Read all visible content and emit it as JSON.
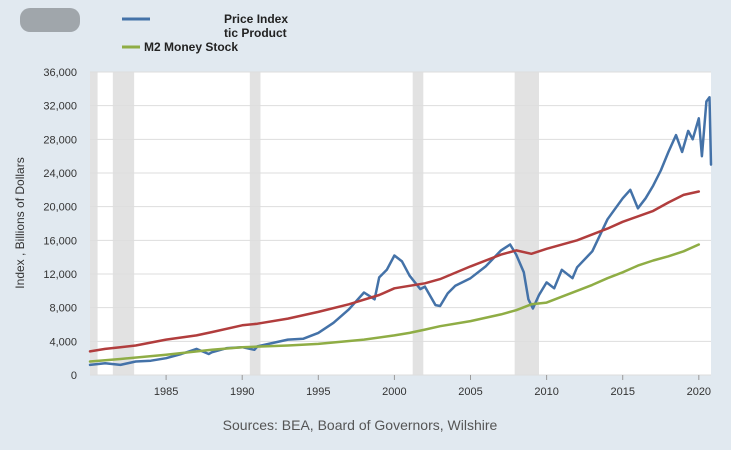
{
  "chart_data": {
    "type": "line",
    "title": "",
    "xlabel": "",
    "ylabel": "Index , Billions of Dollars",
    "source": "Sources: BEA, Board of Governors, Wilshire",
    "xlim": [
      1980,
      2020.8
    ],
    "ylim": [
      0,
      36000
    ],
    "x_ticks": [
      1985,
      1990,
      1995,
      2000,
      2005,
      2010,
      2015,
      2020
    ],
    "y_ticks": [
      {
        "value": 0,
        "label": "0"
      },
      {
        "value": 4000,
        "label": "4,000"
      },
      {
        "value": 8000,
        "label": "8,000"
      },
      {
        "value": 12000,
        "label": "12,000"
      },
      {
        "value": 16000,
        "label": "16,000"
      },
      {
        "value": 20000,
        "label": "20,000"
      },
      {
        "value": 24000,
        "label": "24,000"
      },
      {
        "value": 28000,
        "label": "28,000"
      },
      {
        "value": 32000,
        "label": "32,000"
      },
      {
        "value": 36000,
        "label": "36,000"
      }
    ],
    "grid": true,
    "recessions": [
      [
        1980.0,
        1980.5
      ],
      [
        1981.5,
        1982.9
      ],
      [
        1990.5,
        1991.2
      ],
      [
        2001.2,
        2001.9
      ],
      [
        2007.9,
        2009.5
      ]
    ],
    "legend": {
      "position": "top",
      "entries": [
        {
          "label": "Price Index",
          "color": "#4472a8"
        },
        {
          "label": "tic Product",
          "color": "#b13d3d"
        },
        {
          "label": "M2 Money Stock",
          "color": "#8fad45"
        }
      ]
    },
    "series": [
      {
        "name": "Price Index",
        "color": "#4472a8",
        "points": [
          [
            1980,
            1200
          ],
          [
            1981,
            1400
          ],
          [
            1982,
            1200
          ],
          [
            1983,
            1600
          ],
          [
            1984,
            1700
          ],
          [
            1985,
            2000
          ],
          [
            1986,
            2500
          ],
          [
            1987,
            3100
          ],
          [
            1987.8,
            2500
          ],
          [
            1988,
            2700
          ],
          [
            1989,
            3200
          ],
          [
            1990,
            3300
          ],
          [
            1990.8,
            3000
          ],
          [
            1991,
            3400
          ],
          [
            1992,
            3800
          ],
          [
            1993,
            4200
          ],
          [
            1994,
            4300
          ],
          [
            1995,
            5000
          ],
          [
            1996,
            6200
          ],
          [
            1997,
            7800
          ],
          [
            1998,
            9800
          ],
          [
            1998.7,
            9000
          ],
          [
            1999,
            11600
          ],
          [
            1999.5,
            12500
          ],
          [
            2000,
            14200
          ],
          [
            2000.5,
            13500
          ],
          [
            2001,
            11800
          ],
          [
            2001.7,
            10200
          ],
          [
            2002,
            10500
          ],
          [
            2002.7,
            8300
          ],
          [
            2003,
            8200
          ],
          [
            2003.5,
            9700
          ],
          [
            2004,
            10600
          ],
          [
            2005,
            11500
          ],
          [
            2006,
            12900
          ],
          [
            2007,
            14800
          ],
          [
            2007.6,
            15500
          ],
          [
            2008,
            14300
          ],
          [
            2008.5,
            12200
          ],
          [
            2008.8,
            9000
          ],
          [
            2009.1,
            7900
          ],
          [
            2009.5,
            9500
          ],
          [
            2010,
            11000
          ],
          [
            2010.5,
            10300
          ],
          [
            2011,
            12500
          ],
          [
            2011.7,
            11500
          ],
          [
            2012,
            12800
          ],
          [
            2013,
            14700
          ],
          [
            2014,
            18500
          ],
          [
            2015,
            21000
          ],
          [
            2015.5,
            22000
          ],
          [
            2016,
            19800
          ],
          [
            2016.5,
            21000
          ],
          [
            2017,
            22500
          ],
          [
            2017.5,
            24300
          ],
          [
            2018,
            26500
          ],
          [
            2018.5,
            28500
          ],
          [
            2018.9,
            26500
          ],
          [
            2019.3,
            29000
          ],
          [
            2019.6,
            28000
          ],
          [
            2020,
            30500
          ],
          [
            2020.2,
            26000
          ],
          [
            2020.5,
            32500
          ],
          [
            2020.7,
            33000
          ],
          [
            2020.8,
            25000
          ]
        ]
      },
      {
        "name": "tic Product",
        "color": "#b13d3d",
        "points": [
          [
            1980,
            2800
          ],
          [
            1981,
            3100
          ],
          [
            1982,
            3300
          ],
          [
            1983,
            3500
          ],
          [
            1985,
            4200
          ],
          [
            1987,
            4700
          ],
          [
            1988,
            5100
          ],
          [
            1990,
            5900
          ],
          [
            1991,
            6100
          ],
          [
            1993,
            6700
          ],
          [
            1995,
            7500
          ],
          [
            1997,
            8400
          ],
          [
            1999,
            9500
          ],
          [
            2000,
            10300
          ],
          [
            2001,
            10600
          ],
          [
            2002,
            10900
          ],
          [
            2003,
            11400
          ],
          [
            2005,
            12900
          ],
          [
            2007,
            14300
          ],
          [
            2008,
            14800
          ],
          [
            2009,
            14400
          ],
          [
            2010,
            15000
          ],
          [
            2012,
            16000
          ],
          [
            2014,
            17400
          ],
          [
            2015,
            18200
          ],
          [
            2017,
            19500
          ],
          [
            2018,
            20500
          ],
          [
            2019,
            21400
          ],
          [
            2020,
            21800
          ]
        ]
      },
      {
        "name": "M2 Money Stock",
        "color": "#8fad45",
        "points": [
          [
            1980,
            1600
          ],
          [
            1982,
            1900
          ],
          [
            1985,
            2400
          ],
          [
            1988,
            3000
          ],
          [
            1990,
            3300
          ],
          [
            1993,
            3500
          ],
          [
            1995,
            3700
          ],
          [
            1998,
            4200
          ],
          [
            2000,
            4700
          ],
          [
            2001,
            5000
          ],
          [
            2002,
            5400
          ],
          [
            2003,
            5800
          ],
          [
            2005,
            6400
          ],
          [
            2007,
            7200
          ],
          [
            2008,
            7700
          ],
          [
            2009,
            8400
          ],
          [
            2010,
            8600
          ],
          [
            2011,
            9300
          ],
          [
            2012,
            10000
          ],
          [
            2013,
            10700
          ],
          [
            2014,
            11500
          ],
          [
            2015,
            12200
          ],
          [
            2016,
            13000
          ],
          [
            2017,
            13600
          ],
          [
            2018,
            14100
          ],
          [
            2019,
            14700
          ],
          [
            2020,
            15500
          ]
        ]
      }
    ]
  }
}
